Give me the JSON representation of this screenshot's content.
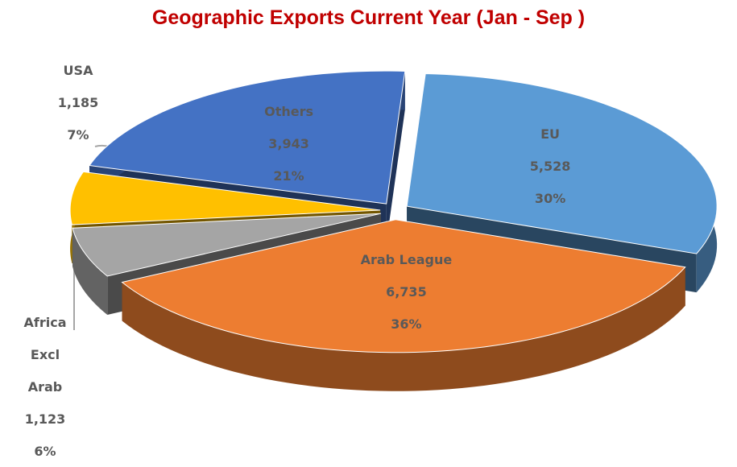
{
  "chart_data": {
    "type": "pie",
    "title": "Geographic Exports Current Year (Jan  - Sep )",
    "categories": [
      "EU",
      "Arab League",
      "Africa Excl Arab",
      "USA",
      "Others"
    ],
    "values": [
      5528,
      6735,
      1123,
      1185,
      3943
    ],
    "value_labels": [
      "5,528",
      "6,735",
      "1,123",
      "1,185",
      "3,943"
    ],
    "percent_labels": [
      "30%",
      "36%",
      "6%",
      "7%",
      "21%"
    ],
    "colors": [
      "#5b9bd5",
      "#ed7d31",
      "#a5a5a5",
      "#ffc000",
      "#4472c4"
    ]
  }
}
